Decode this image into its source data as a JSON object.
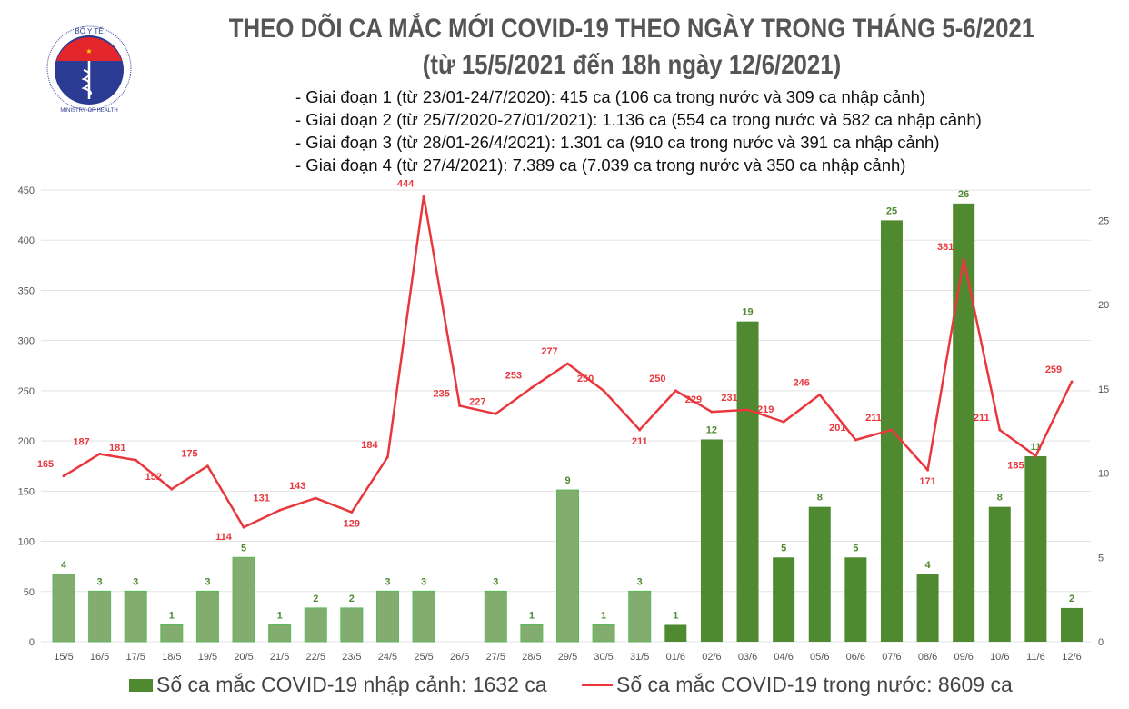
{
  "header": {
    "title_line1": "THEO DÕI CA MẮC MỚI COVID-19 THEO NGÀY TRONG THÁNG 5-6/2021",
    "title_line2": "(từ 15/5/2021 đến 18h ngày 12/6/2021)",
    "phases": [
      "- Giai đoạn 1 (từ 23/01-24/7/2020): 415 ca (106 ca trong nước và 309 ca nhập cảnh)",
      "- Giai đoạn 2 (từ 25/7/2020-27/01/2021): 1.136 ca (554 ca trong nước và 582 ca nhập cảnh)",
      "- Giai đoạn 3 (từ 28/01-26/4/2021): 1.301 ca (910 ca trong nước và 391 ca nhập cảnh)",
      "- Giai đoạn 4 (từ 27/4/2021): 7.389 ca (7.039 ca trong nước và 350 ca nhập cảnh)"
    ],
    "logo": {
      "top_text": "BỘ Y TẾ",
      "bottom_text": "MINISTRY OF HEALTH"
    }
  },
  "chart_data": {
    "type": "bar+line",
    "categories": [
      "15/5",
      "16/5",
      "17/5",
      "18/5",
      "19/5",
      "20/5",
      "21/5",
      "22/5",
      "23/5",
      "24/5",
      "25/5",
      "26/5",
      "27/5",
      "28/5",
      "29/5",
      "30/5",
      "31/5",
      "01/6",
      "02/6",
      "03/6",
      "04/6",
      "05/6",
      "06/6",
      "07/6",
      "08/6",
      "09/6",
      "10/6",
      "11/6",
      "12/6"
    ],
    "series": [
      {
        "name": "Số ca mắc COVID-19 nhập cảnh: 1632 ca",
        "type": "bar",
        "axis": "right",
        "values": [
          4,
          3,
          3,
          1,
          3,
          5,
          1,
          2,
          2,
          3,
          3,
          null,
          3,
          1,
          9,
          1,
          3,
          1,
          12,
          19,
          5,
          8,
          5,
          25,
          4,
          26,
          8,
          11,
          2
        ],
        "colors": {
          "may": "#82ad6e",
          "june": "#4f8a30"
        }
      },
      {
        "name": "Số ca mắc COVID-19 trong nước: 8609 ca",
        "type": "line",
        "axis": "left",
        "values": [
          165,
          187,
          181,
          152,
          175,
          114,
          131,
          143,
          129,
          184,
          444,
          235,
          227,
          253,
          277,
          250,
          211,
          250,
          229,
          231,
          219,
          246,
          201,
          211,
          171,
          381,
          211,
          185,
          259
        ],
        "color": "#e8383d"
      }
    ],
    "left_axis": {
      "ylim": [
        0,
        450
      ],
      "ticks": [
        0,
        50,
        100,
        150,
        200,
        250,
        300,
        350,
        400,
        450
      ]
    },
    "right_axis": {
      "ylim": [
        0,
        26.8
      ],
      "ticks": [
        0,
        5,
        10,
        15,
        20,
        25
      ]
    },
    "grid": true,
    "legend_position": "bottom"
  }
}
